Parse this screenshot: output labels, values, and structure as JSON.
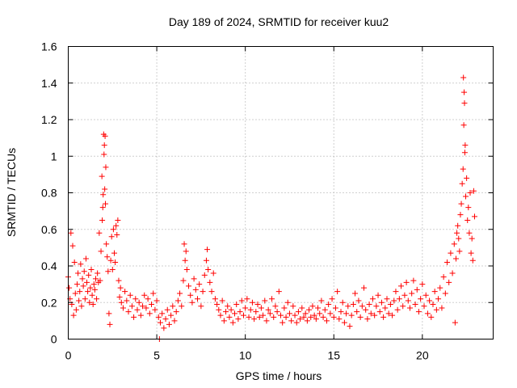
{
  "chart_data": {
    "type": "scatter",
    "title": "Day 189 of 2024, SRMTID for receiver kuu2",
    "xlabel": "GPS time / hours",
    "ylabel": "SRMTID / TECUs",
    "xlim": [
      0,
      24
    ],
    "ylim": [
      0,
      1.6
    ],
    "x_ticks": [
      0,
      5,
      10,
      15,
      20
    ],
    "x_tick_labels": [
      "0",
      "5",
      "10",
      "15",
      "20"
    ],
    "y_ticks": [
      0,
      0.2,
      0.4,
      0.6,
      0.8,
      1.0,
      1.2,
      1.4,
      1.6
    ],
    "y_tick_labels": [
      "0",
      "0.2",
      "0.4",
      "0.6",
      "0.8",
      "1",
      "1.2",
      "1.4",
      "1.6"
    ],
    "grid": true,
    "marker": "plus",
    "color": "#ff0000",
    "series": [
      {
        "name": "kuu2",
        "points": [
          [
            0.0,
            0.34
          ],
          [
            0.05,
            0.28
          ],
          [
            0.1,
            0.22
          ],
          [
            0.15,
            0.58
          ],
          [
            0.2,
            0.19
          ],
          [
            0.25,
            0.51
          ],
          [
            0.3,
            0.13
          ],
          [
            0.35,
            0.42
          ],
          [
            0.4,
            0.25
          ],
          [
            0.45,
            0.16
          ],
          [
            0.5,
            0.3
          ],
          [
            0.55,
            0.36
          ],
          [
            0.6,
            0.21
          ],
          [
            0.65,
            0.26
          ],
          [
            0.7,
            0.41
          ],
          [
            0.75,
            0.18
          ],
          [
            0.8,
            0.33
          ],
          [
            0.85,
            0.29
          ],
          [
            0.9,
            0.37
          ],
          [
            0.95,
            0.22
          ],
          [
            1.0,
            0.44
          ],
          [
            1.05,
            0.31
          ],
          [
            1.1,
            0.26
          ],
          [
            1.15,
            0.35
          ],
          [
            1.2,
            0.2
          ],
          [
            1.25,
            0.28
          ],
          [
            1.3,
            0.38
          ],
          [
            1.35,
            0.24
          ],
          [
            1.4,
            0.19
          ],
          [
            1.45,
            0.3
          ],
          [
            1.5,
            0.27
          ],
          [
            1.55,
            0.33
          ],
          [
            1.6,
            0.22
          ],
          [
            1.65,
            0.36
          ],
          [
            1.7,
            0.31
          ],
          [
            1.75,
            0.58
          ],
          [
            1.8,
            0.32
          ],
          [
            1.85,
            0.48
          ],
          [
            1.9,
            0.89
          ],
          [
            1.92,
            0.65
          ],
          [
            1.95,
            0.72
          ],
          [
            1.97,
            0.79
          ],
          [
            2.0,
            1.12
          ],
          [
            2.02,
            1.01
          ],
          [
            2.04,
            1.06
          ],
          [
            2.06,
            0.82
          ],
          [
            2.08,
            1.11
          ],
          [
            2.1,
            0.74
          ],
          [
            2.12,
            0.94
          ],
          [
            2.15,
            0.52
          ],
          [
            2.2,
            0.45
          ],
          [
            2.25,
            0.37
          ],
          [
            2.3,
            0.14
          ],
          [
            2.35,
            0.08
          ],
          [
            2.4,
            0.43
          ],
          [
            2.45,
            0.56
          ],
          [
            2.5,
            0.38
          ],
          [
            2.55,
            0.6
          ],
          [
            2.6,
            0.47
          ],
          [
            2.65,
            0.42
          ],
          [
            2.7,
            0.62
          ],
          [
            2.75,
            0.57
          ],
          [
            2.8,
            0.65
          ],
          [
            2.85,
            0.32
          ],
          [
            2.9,
            0.23
          ],
          [
            2.95,
            0.28
          ],
          [
            3.0,
            0.2
          ],
          [
            3.1,
            0.17
          ],
          [
            3.2,
            0.26
          ],
          [
            3.3,
            0.21
          ],
          [
            3.4,
            0.15
          ],
          [
            3.5,
            0.24
          ],
          [
            3.6,
            0.18
          ],
          [
            3.7,
            0.12
          ],
          [
            3.8,
            0.22
          ],
          [
            3.9,
            0.16
          ],
          [
            4.0,
            0.2
          ],
          [
            4.1,
            0.13
          ],
          [
            4.2,
            0.18
          ],
          [
            4.3,
            0.24
          ],
          [
            4.4,
            0.17
          ],
          [
            4.5,
            0.22
          ],
          [
            4.6,
            0.14
          ],
          [
            4.7,
            0.19
          ],
          [
            4.8,
            0.25
          ],
          [
            4.9,
            0.16
          ],
          [
            5.0,
            0.21
          ],
          [
            5.1,
            0.12
          ],
          [
            5.15,
            0.0
          ],
          [
            5.2,
            0.09
          ],
          [
            5.3,
            0.14
          ],
          [
            5.4,
            0.06
          ],
          [
            5.5,
            0.11
          ],
          [
            5.6,
            0.16
          ],
          [
            5.7,
            0.08
          ],
          [
            5.8,
            0.13
          ],
          [
            5.9,
            0.18
          ],
          [
            6.0,
            0.1
          ],
          [
            6.1,
            0.15
          ],
          [
            6.2,
            0.21
          ],
          [
            6.3,
            0.25
          ],
          [
            6.4,
            0.18
          ],
          [
            6.5,
            0.32
          ],
          [
            6.55,
            0.52
          ],
          [
            6.6,
            0.43
          ],
          [
            6.65,
            0.48
          ],
          [
            6.7,
            0.38
          ],
          [
            6.8,
            0.29
          ],
          [
            6.9,
            0.24
          ],
          [
            7.0,
            0.2
          ],
          [
            7.1,
            0.33
          ],
          [
            7.2,
            0.27
          ],
          [
            7.3,
            0.22
          ],
          [
            7.4,
            0.3
          ],
          [
            7.5,
            0.18
          ],
          [
            7.6,
            0.26
          ],
          [
            7.7,
            0.35
          ],
          [
            7.8,
            0.43
          ],
          [
            7.85,
            0.49
          ],
          [
            7.9,
            0.38
          ],
          [
            8.0,
            0.31
          ],
          [
            8.1,
            0.26
          ],
          [
            8.2,
            0.36
          ],
          [
            8.3,
            0.22
          ],
          [
            8.4,
            0.19
          ],
          [
            8.5,
            0.16
          ],
          [
            8.6,
            0.13
          ],
          [
            8.7,
            0.21
          ],
          [
            8.8,
            0.1
          ],
          [
            8.9,
            0.15
          ],
          [
            9.0,
            0.18
          ],
          [
            9.1,
            0.12
          ],
          [
            9.2,
            0.16
          ],
          [
            9.3,
            0.09
          ],
          [
            9.4,
            0.14
          ],
          [
            9.5,
            0.19
          ],
          [
            9.6,
            0.11
          ],
          [
            9.7,
            0.15
          ],
          [
            9.8,
            0.21
          ],
          [
            9.9,
            0.13
          ],
          [
            10.0,
            0.17
          ],
          [
            10.1,
            0.22
          ],
          [
            10.2,
            0.12
          ],
          [
            10.3,
            0.16
          ],
          [
            10.4,
            0.2
          ],
          [
            10.5,
            0.11
          ],
          [
            10.6,
            0.15
          ],
          [
            10.7,
            0.19
          ],
          [
            10.8,
            0.12
          ],
          [
            10.9,
            0.17
          ],
          [
            11.0,
            0.13
          ],
          [
            11.1,
            0.21
          ],
          [
            11.2,
            0.1
          ],
          [
            11.3,
            0.16
          ],
          [
            11.4,
            0.14
          ],
          [
            11.5,
            0.22
          ],
          [
            11.6,
            0.12
          ],
          [
            11.7,
            0.18
          ],
          [
            11.8,
            0.15
          ],
          [
            11.9,
            0.26
          ],
          [
            12.0,
            0.13
          ],
          [
            12.1,
            0.09
          ],
          [
            12.2,
            0.17
          ],
          [
            12.3,
            0.12
          ],
          [
            12.4,
            0.2
          ],
          [
            12.5,
            0.14
          ],
          [
            12.6,
            0.1
          ],
          [
            12.7,
            0.18
          ],
          [
            12.8,
            0.13
          ],
          [
            12.9,
            0.09
          ],
          [
            13.0,
            0.15
          ],
          [
            13.1,
            0.11
          ],
          [
            13.2,
            0.17
          ],
          [
            13.3,
            0.12
          ],
          [
            13.4,
            0.14
          ],
          [
            13.5,
            0.1
          ],
          [
            13.6,
            0.16
          ],
          [
            13.7,
            0.12
          ],
          [
            13.8,
            0.18
          ],
          [
            13.9,
            0.13
          ],
          [
            14.0,
            0.11
          ],
          [
            14.1,
            0.17
          ],
          [
            14.2,
            0.14
          ],
          [
            14.3,
            0.21
          ],
          [
            14.4,
            0.12
          ],
          [
            14.5,
            0.16
          ],
          [
            14.6,
            0.1
          ],
          [
            14.7,
            0.19
          ],
          [
            14.8,
            0.14
          ],
          [
            14.9,
            0.22
          ],
          [
            15.0,
            0.12
          ],
          [
            15.1,
            0.17
          ],
          [
            15.2,
            0.26
          ],
          [
            15.3,
            0.11
          ],
          [
            15.4,
            0.15
          ],
          [
            15.5,
            0.2
          ],
          [
            15.6,
            0.09
          ],
          [
            15.7,
            0.14
          ],
          [
            15.8,
            0.18
          ],
          [
            15.9,
            0.07
          ],
          [
            16.0,
            0.13
          ],
          [
            16.1,
            0.19
          ],
          [
            16.2,
            0.25
          ],
          [
            16.3,
            0.15
          ],
          [
            16.4,
            0.21
          ],
          [
            16.5,
            0.12
          ],
          [
            16.6,
            0.18
          ],
          [
            16.7,
            0.28
          ],
          [
            16.8,
            0.16
          ],
          [
            16.9,
            0.11
          ],
          [
            17.0,
            0.19
          ],
          [
            17.1,
            0.14
          ],
          [
            17.2,
            0.22
          ],
          [
            17.3,
            0.13
          ],
          [
            17.4,
            0.18
          ],
          [
            17.5,
            0.24
          ],
          [
            17.6,
            0.15
          ],
          [
            17.7,
            0.2
          ],
          [
            17.8,
            0.12
          ],
          [
            17.9,
            0.17
          ],
          [
            18.0,
            0.22
          ],
          [
            18.1,
            0.14
          ],
          [
            18.2,
            0.19
          ],
          [
            18.3,
            0.13
          ],
          [
            18.4,
            0.21
          ],
          [
            18.5,
            0.26
          ],
          [
            18.6,
            0.16
          ],
          [
            18.7,
            0.22
          ],
          [
            18.8,
            0.29
          ],
          [
            18.9,
            0.18
          ],
          [
            19.0,
            0.24
          ],
          [
            19.1,
            0.31
          ],
          [
            19.2,
            0.21
          ],
          [
            19.3,
            0.17
          ],
          [
            19.4,
            0.25
          ],
          [
            19.5,
            0.32
          ],
          [
            19.6,
            0.19
          ],
          [
            19.7,
            0.27
          ],
          [
            19.8,
            0.15
          ],
          [
            19.9,
            0.22
          ],
          [
            20.0,
            0.3
          ],
          [
            20.1,
            0.18
          ],
          [
            20.2,
            0.24
          ],
          [
            20.3,
            0.14
          ],
          [
            20.4,
            0.21
          ],
          [
            20.5,
            0.12
          ],
          [
            20.6,
            0.19
          ],
          [
            20.7,
            0.26
          ],
          [
            20.8,
            0.16
          ],
          [
            20.9,
            0.22
          ],
          [
            21.0,
            0.28
          ],
          [
            21.1,
            0.17
          ],
          [
            21.2,
            0.34
          ],
          [
            21.3,
            0.25
          ],
          [
            21.4,
            0.42
          ],
          [
            21.5,
            0.31
          ],
          [
            21.6,
            0.47
          ],
          [
            21.7,
            0.36
          ],
          [
            21.8,
            0.52
          ],
          [
            21.85,
            0.09
          ],
          [
            21.9,
            0.44
          ],
          [
            21.95,
            0.58
          ],
          [
            22.0,
            0.62
          ],
          [
            22.05,
            0.55
          ],
          [
            22.1,
            0.48
          ],
          [
            22.15,
            0.68
          ],
          [
            22.2,
            0.74
          ],
          [
            22.25,
            0.85
          ],
          [
            22.3,
            0.93
          ],
          [
            22.32,
            1.43
          ],
          [
            22.34,
            1.17
          ],
          [
            22.36,
            1.35
          ],
          [
            22.38,
            1.29
          ],
          [
            22.4,
            1.02
          ],
          [
            22.42,
            1.06
          ],
          [
            22.45,
            0.78
          ],
          [
            22.5,
            0.88
          ],
          [
            22.55,
            0.65
          ],
          [
            22.6,
            0.72
          ],
          [
            22.65,
            0.58
          ],
          [
            22.7,
            0.8
          ],
          [
            22.75,
            0.47
          ],
          [
            22.8,
            0.55
          ],
          [
            22.85,
            0.43
          ],
          [
            22.9,
            0.81
          ],
          [
            22.95,
            0.67
          ]
        ]
      }
    ]
  }
}
